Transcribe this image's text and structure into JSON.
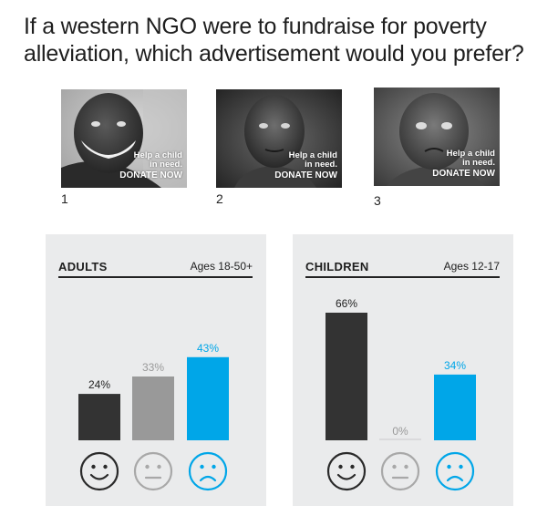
{
  "title": "If a western NGO were to fundraise for poverty alleviation, which advertisement would you prefer?",
  "ads": [
    {
      "number": "1",
      "line1": "Help a child",
      "line2": "in need.",
      "cta": "DONATE NOW"
    },
    {
      "number": "2",
      "line1": "Help a child",
      "line2": "in need.",
      "cta": "DONATE NOW"
    },
    {
      "number": "3",
      "line1": "Help a child",
      "line2": "in need.",
      "cta": "DONATE NOW"
    }
  ],
  "panels": [
    {
      "name": "ADULTS",
      "age": "Ages 18-50+"
    },
    {
      "name": "CHILDREN",
      "age": "Ages 12-17"
    }
  ],
  "colors": {
    "dark": "#333333",
    "gray": "#999999",
    "blue": "#00a6e8",
    "panel": "#eaebec",
    "zero_line": "#c9cacb"
  },
  "icons": [
    "smiling-face-icon",
    "neutral-face-icon",
    "frowning-face-icon"
  ],
  "chart_data": [
    {
      "type": "bar",
      "categories": [
        "1",
        "2",
        "3"
      ],
      "values": [
        24,
        33,
        43
      ],
      "labels": [
        "24%",
        "33%",
        "43%"
      ],
      "ylim": [
        0,
        66
      ],
      "title": "ADULTS",
      "subtitle": "Ages 18-50+",
      "xlabel": "",
      "ylabel": "",
      "grid": false,
      "legend": "none",
      "colors": [
        "#333333",
        "#999999",
        "#00a6e8"
      ]
    },
    {
      "type": "bar",
      "categories": [
        "1",
        "2",
        "3"
      ],
      "values": [
        66,
        0,
        34
      ],
      "labels": [
        "66%",
        "0%",
        "34%"
      ],
      "ylim": [
        0,
        66
      ],
      "title": "CHILDREN",
      "subtitle": "Ages 12-17",
      "xlabel": "",
      "ylabel": "",
      "grid": false,
      "legend": "none",
      "colors": [
        "#333333",
        "#999999",
        "#00a6e8"
      ]
    }
  ]
}
